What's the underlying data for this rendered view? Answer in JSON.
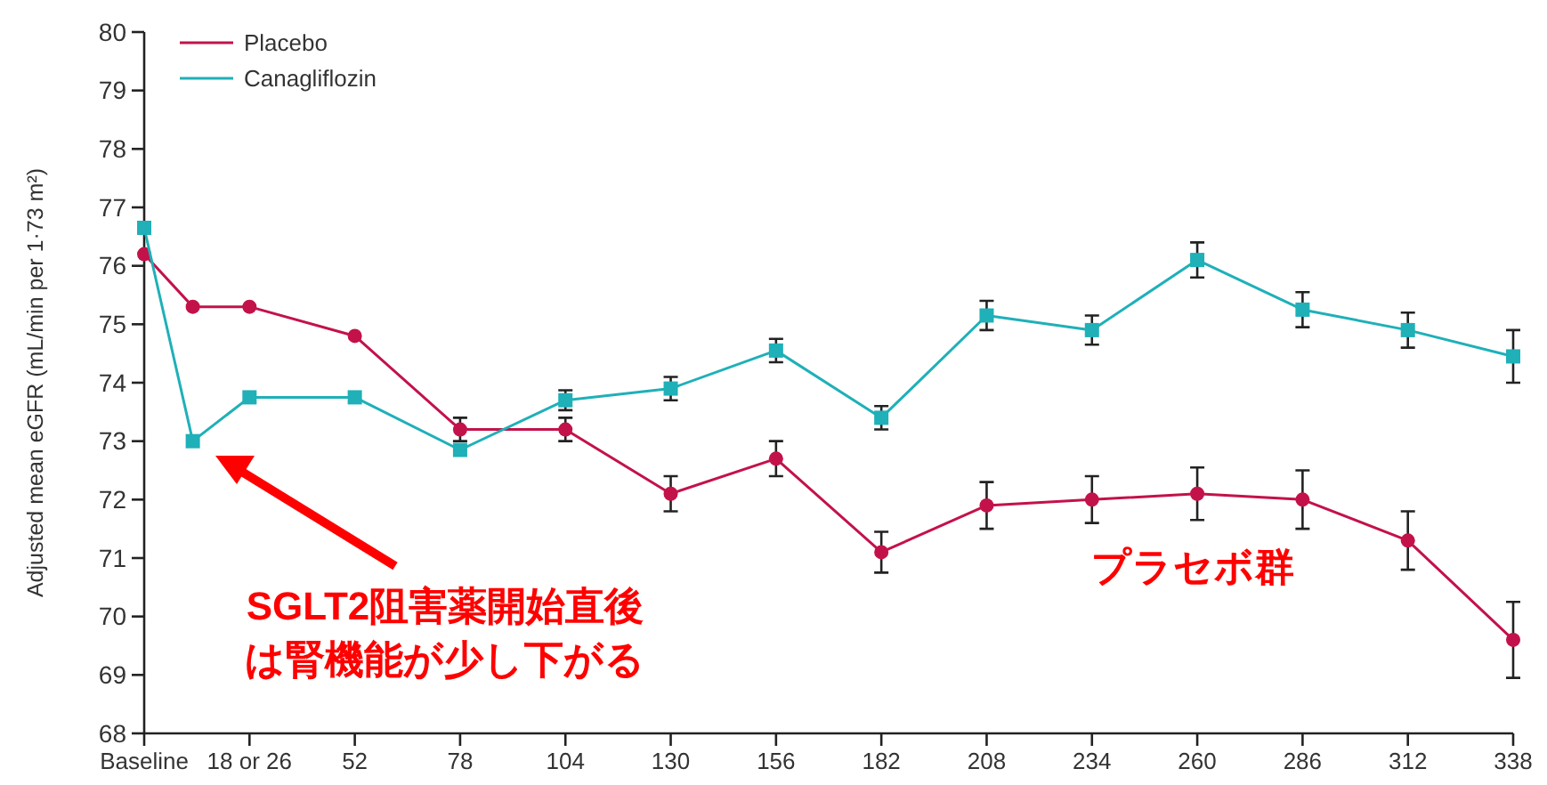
{
  "chart_data": {
    "type": "line",
    "ylabel": "Adjusted mean eGFR (mL/min per 1·73 m²)",
    "xlim": [
      0,
      338
    ],
    "xticks": [
      {
        "value": 0,
        "label": "Baseline"
      },
      {
        "value": 26,
        "label": "18 or 26"
      },
      52,
      78,
      104,
      130,
      156,
      182,
      208,
      234,
      260,
      286,
      312,
      338
    ],
    "ylim": [
      68,
      80
    ],
    "yticks": [
      68,
      69,
      70,
      71,
      72,
      73,
      74,
      75,
      76,
      77,
      78,
      79,
      80
    ],
    "grid": false,
    "legend": "top left",
    "series": [
      {
        "name": "Placebo",
        "color": "#c3124a",
        "marker": "circle",
        "x": [
          0,
          12,
          26,
          52,
          78,
          104,
          130,
          156,
          182,
          208,
          234,
          260,
          286,
          312,
          338
        ],
        "values": [
          76.2,
          75.3,
          75.3,
          74.8,
          73.2,
          73.2,
          72.1,
          72.7,
          71.1,
          71.9,
          72.0,
          72.1,
          72.0,
          71.3,
          69.6
        ],
        "errors": [
          null,
          null,
          null,
          null,
          0.2,
          0.2,
          0.3,
          0.3,
          0.35,
          0.4,
          0.4,
          0.45,
          0.5,
          0.5,
          0.65
        ]
      },
      {
        "name": "Canagliflozin",
        "color": "#1fb0b8",
        "marker": "square",
        "x": [
          0,
          12,
          26,
          52,
          78,
          104,
          130,
          156,
          182,
          208,
          234,
          260,
          286,
          312,
          338
        ],
        "values": [
          76.65,
          73.0,
          73.75,
          73.75,
          72.85,
          73.7,
          73.9,
          74.55,
          73.4,
          75.15,
          74.9,
          76.1,
          75.25,
          74.9,
          74.45
        ],
        "errors": [
          null,
          null,
          null,
          null,
          null,
          0.17,
          0.2,
          0.2,
          0.2,
          0.25,
          0.25,
          0.3,
          0.3,
          0.3,
          0.45
        ]
      }
    ],
    "annotations": [
      "SGLT2阻害薬開始直後は腎機能が少し下がる",
      "プラセボ群"
    ]
  }
}
